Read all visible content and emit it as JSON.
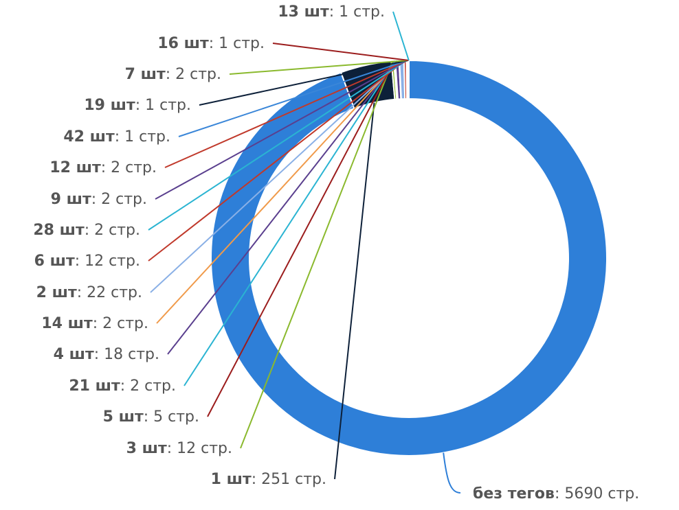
{
  "chart_data": {
    "type": "donut",
    "start_angle_deg": 0,
    "direction": "clockwise",
    "slices": [
      {
        "count": "без тегов",
        "unit": "",
        "pages": "5690",
        "suffix": " стр.",
        "value": 5690,
        "color": "#2e7fd8",
        "side": "right",
        "labelLine": 0
      },
      {
        "count": "1",
        "unit": " шт",
        "pages": "251",
        "suffix": " стр.",
        "value": 251,
        "color": "#0d2039",
        "side": "left",
        "labelLine": 15
      },
      {
        "count": "3",
        "unit": " шт",
        "pages": "12",
        "suffix": " стр.",
        "value": 12,
        "color": "#8ab92d",
        "side": "left",
        "labelLine": 14
      },
      {
        "count": "5",
        "unit": " шт",
        "pages": "5",
        "suffix": " стр.",
        "value": 5,
        "color": "#9b1c1c",
        "side": "left",
        "labelLine": 13
      },
      {
        "count": "21",
        "unit": " шт",
        "pages": "2",
        "suffix": " стр.",
        "value": 2,
        "color": "#2ab4d2",
        "side": "left",
        "labelLine": 12
      },
      {
        "count": "4",
        "unit": " шт",
        "pages": "18",
        "suffix": " стр.",
        "value": 18,
        "color": "#5a3f8e",
        "side": "left",
        "labelLine": 11
      },
      {
        "count": "14",
        "unit": " шт",
        "pages": "2",
        "suffix": " стр.",
        "value": 2,
        "color": "#f09a4a",
        "side": "left",
        "labelLine": 10
      },
      {
        "count": "2",
        "unit": " шт",
        "pages": "22",
        "suffix": " стр.",
        "value": 22,
        "color": "#8ab0e6",
        "side": "left",
        "labelLine": 9
      },
      {
        "count": "6",
        "unit": " шт",
        "pages": "12",
        "suffix": " стр.",
        "value": 12,
        "color": "#c0392b",
        "side": "left",
        "labelLine": 8
      },
      {
        "count": "28",
        "unit": " шт",
        "pages": "2",
        "suffix": " стр.",
        "value": 2,
        "color": "#2ab4d2",
        "side": "left",
        "labelLine": 7
      },
      {
        "count": "9",
        "unit": " шт",
        "pages": "2",
        "suffix": " стр.",
        "value": 2,
        "color": "#5a3f8e",
        "side": "left",
        "labelLine": 6
      },
      {
        "count": "12",
        "unit": " шт",
        "pages": "2",
        "suffix": " стр.",
        "value": 2,
        "color": "#c0392b",
        "side": "left",
        "labelLine": 5
      },
      {
        "count": "42",
        "unit": " шт",
        "pages": "1",
        "suffix": " стр.",
        "value": 1,
        "color": "#3a86d8",
        "side": "left",
        "labelLine": 4
      },
      {
        "count": "19",
        "unit": " шт",
        "pages": "1",
        "suffix": " стр.",
        "value": 1,
        "color": "#0d2039",
        "side": "left",
        "labelLine": 3
      },
      {
        "count": "7",
        "unit": " шт",
        "pages": "2",
        "suffix": " стр.",
        "value": 2,
        "color": "#8ab92d",
        "side": "left",
        "labelLine": 2
      },
      {
        "count": "16",
        "unit": " шт",
        "pages": "1",
        "suffix": " стр.",
        "value": 1,
        "color": "#9b1c1c",
        "side": "left",
        "labelLine": 1
      },
      {
        "count": "13",
        "unit": " шт",
        "pages": "1",
        "suffix": " стр.",
        "value": 1,
        "color": "#2ab4d2",
        "side": "left",
        "labelLine": 0
      }
    ]
  }
}
